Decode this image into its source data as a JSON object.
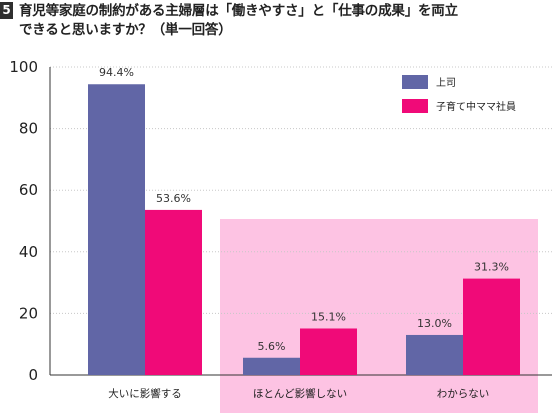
{
  "header": {
    "number": "5",
    "line1": "育児等家庭の制約がある主婦層は「働きやすさ」と「仕事の成果」を両立",
    "line2": "できると思いますか？（単一回答）"
  },
  "colors": {
    "boss": "#6166a6",
    "mother": "#f00a78",
    "highlight": "#fdc3e3"
  },
  "chart_data": {
    "type": "bar",
    "categories": [
      "大いに影響する",
      "ほとんど影響しない",
      "わからない"
    ],
    "series": [
      {
        "name": "上司",
        "values": [
          94.4,
          5.6,
          13.0
        ],
        "labels": [
          "94.4%",
          "5.6%",
          "13.0%"
        ]
      },
      {
        "name": "子育て中ママ社員",
        "values": [
          53.6,
          15.1,
          31.3
        ],
        "labels": [
          "53.6%",
          "15.1%",
          "31.3%"
        ]
      }
    ],
    "ylim": [
      0,
      100
    ],
    "yticks": [
      "0",
      "20",
      "40",
      "60",
      "80",
      "100"
    ],
    "grid": true,
    "legend_position": "top-right",
    "highlighted_categories": [
      "ほとんど影響しない",
      "わからない"
    ]
  }
}
